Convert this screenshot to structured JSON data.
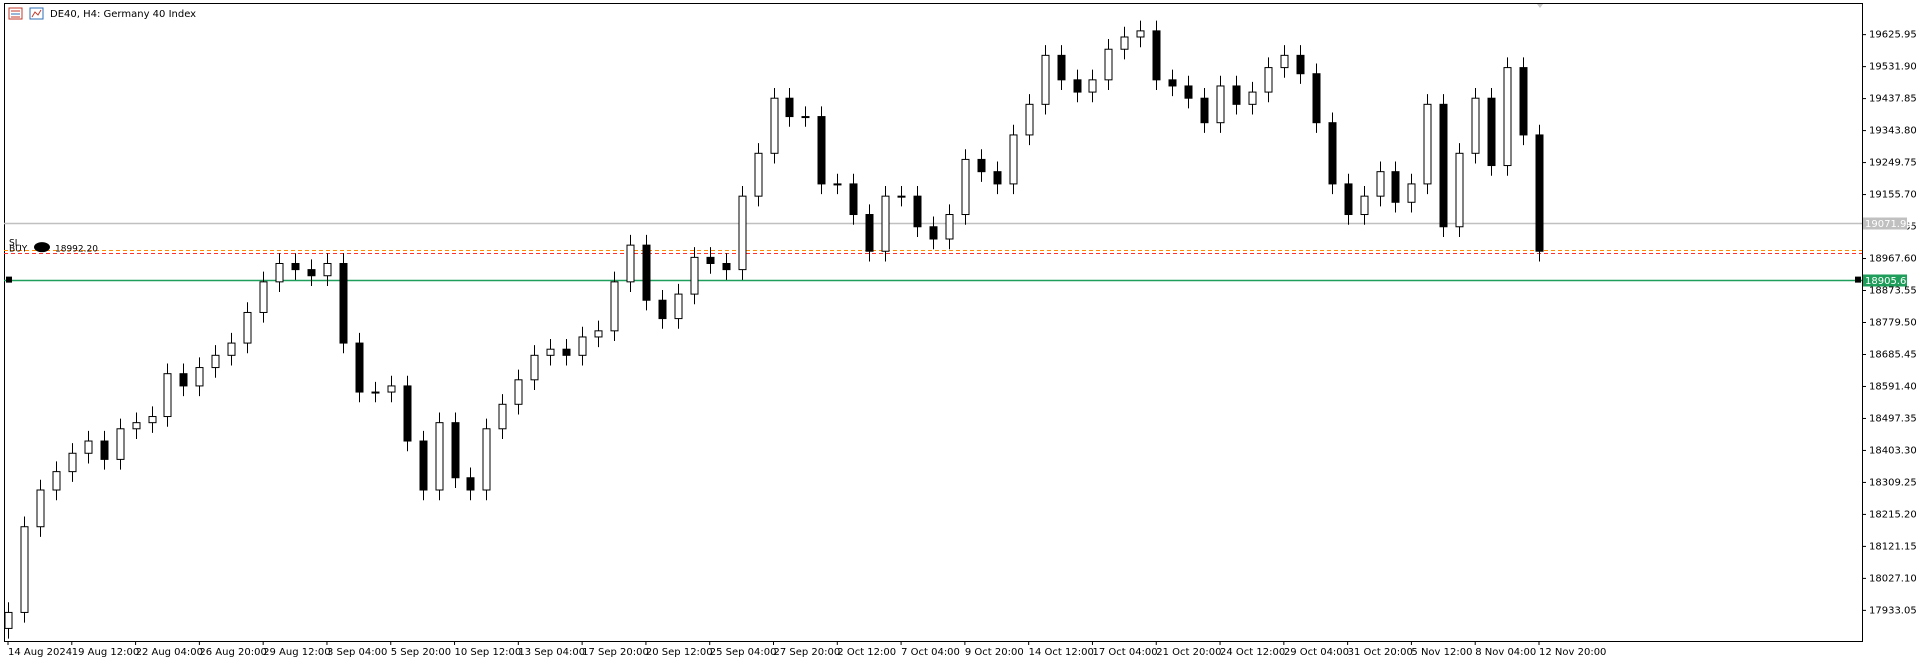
{
  "chart_data": {
    "type": "candlestick",
    "title": "DE40, H4:  Germany 40 Index",
    "categories": [
      "14 Aug 2024",
      null,
      null,
      null,
      "19 Aug 12:00",
      null,
      null,
      null,
      "22 Aug 04:00",
      null,
      null,
      null,
      "26 Aug 20:00",
      null,
      null,
      null,
      "29 Aug 12:00",
      null,
      null,
      null,
      "3 Sep 04:00",
      null,
      null,
      null,
      "5 Sep 20:00",
      null,
      null,
      null,
      "10 Sep 12:00",
      null,
      null,
      null,
      "13 Sep 04:00",
      null,
      null,
      null,
      "17 Sep 20:00",
      null,
      null,
      null,
      "20 Sep 12:00",
      null,
      null,
      null,
      "25 Sep 04:00",
      null,
      null,
      null,
      "27 Sep 20:00",
      null,
      null,
      null,
      "2 Oct 12:00",
      null,
      null,
      null,
      "7 Oct 04:00",
      null,
      null,
      null,
      "9 Oct 20:00",
      null,
      null,
      null,
      "14 Oct 12:00",
      null,
      null,
      null,
      "17 Oct 04:00",
      null,
      null,
      null,
      "21 Oct 20:00",
      null,
      null,
      null,
      "24 Oct 12:00",
      null,
      null,
      null,
      "29 Oct 04:00",
      null,
      null,
      null,
      "31 Oct 20:00",
      null,
      null,
      null,
      "5 Nov 12:00",
      null,
      null,
      null,
      "8 Nov 04:00",
      null,
      null,
      null,
      "12 Nov 20:00"
    ],
    "open": [
      17880,
      17927,
      18179,
      18287,
      18341,
      18395,
      18431,
      18377,
      18467,
      18485,
      18503,
      18629,
      18593,
      18647,
      18683,
      18719,
      18809,
      18899,
      18953,
      18935,
      18917,
      18953,
      18719,
      18575,
      18575,
      18593,
      18431,
      18287,
      18485,
      18323,
      18287,
      18467,
      18539,
      18611,
      18683,
      18701,
      18683,
      18737,
      18755,
      18899,
      19007,
      18845,
      18791,
      18863,
      18971,
      18953,
      18935,
      19151,
      19277,
      19439,
      19385,
      19385,
      19187,
      19187,
      19097,
      18989,
      19151,
      19151,
      19061,
      19025,
      19097,
      19259,
      19223,
      19187,
      19331,
      19421,
      19565,
      19493,
      19457,
      19493,
      19583,
      19619,
      19637,
      19493,
      19475,
      19439,
      19367,
      19475,
      19421,
      19457,
      19529,
      19565,
      19511,
      19367,
      19187,
      19097,
      19151,
      19223,
      19133,
      19187,
      19421,
      19061,
      19277,
      19439,
      19241,
      19529,
      19331
    ],
    "high": [
      17957,
      18209,
      18317,
      18371,
      18425,
      18461,
      18461,
      18497,
      18515,
      18533,
      18659,
      18659,
      18677,
      18713,
      18749,
      18839,
      18929,
      18983,
      18983,
      18965,
      18983,
      18983,
      18749,
      18605,
      18623,
      18623,
      18461,
      18515,
      18515,
      18353,
      18497,
      18569,
      18641,
      18713,
      18731,
      18731,
      18767,
      18785,
      18929,
      19037,
      19037,
      18875,
      18893,
      19001,
      19001,
      18983,
      19181,
      19307,
      19469,
      19469,
      19415,
      19415,
      19217,
      19217,
      19127,
      19181,
      19181,
      19181,
      19091,
      19127,
      19289,
      19289,
      19253,
      19361,
      19451,
      19595,
      19595,
      19523,
      19523,
      19613,
      19649,
      19667,
      19667,
      19523,
      19505,
      19469,
      19505,
      19505,
      19487,
      19559,
      19595,
      19595,
      19541,
      19397,
      19217,
      19181,
      19253,
      19253,
      19217,
      19451,
      19451,
      19307,
      19469,
      19469,
      19559,
      19559,
      19361
    ],
    "low": [
      17850,
      17897,
      18149,
      18257,
      18311,
      18365,
      18347,
      18347,
      18437,
      18455,
      18473,
      18563,
      18563,
      18617,
      18653,
      18689,
      18779,
      18869,
      18905,
      18887,
      18887,
      18689,
      18545,
      18545,
      18545,
      18401,
      18257,
      18257,
      18293,
      18257,
      18257,
      18437,
      18509,
      18581,
      18653,
      18653,
      18653,
      18707,
      18725,
      18869,
      18815,
      18761,
      18761,
      18833,
      18923,
      18905,
      18905,
      19121,
      19247,
      19355,
      19355,
      19157,
      19157,
      19067,
      18959,
      18959,
      19121,
      19031,
      18995,
      18995,
      19067,
      19193,
      19157,
      19157,
      19301,
      19391,
      19463,
      19427,
      19427,
      19463,
      19553,
      19589,
      19463,
      19445,
      19409,
      19337,
      19337,
      19391,
      19391,
      19427,
      19499,
      19481,
      19337,
      19157,
      19067,
      19067,
      19121,
      19103,
      19103,
      19157,
      19031,
      19031,
      19247,
      19211,
      19211,
      19301,
      18959
    ],
    "close": [
      17927,
      18179,
      18287,
      18341,
      18395,
      18431,
      18377,
      18467,
      18485,
      18503,
      18629,
      18593,
      18647,
      18683,
      18719,
      18809,
      18899,
      18953,
      18935,
      18917,
      18953,
      18719,
      18575,
      18575,
      18593,
      18431,
      18287,
      18485,
      18323,
      18287,
      18467,
      18539,
      18611,
      18683,
      18701,
      18683,
      18737,
      18755,
      18899,
      19007,
      18845,
      18791,
      18863,
      18971,
      18953,
      18935,
      19151,
      19277,
      19439,
      19385,
      19385,
      19187,
      19187,
      19097,
      18989,
      19151,
      19151,
      19061,
      19025,
      19097,
      19259,
      19223,
      19187,
      19331,
      19421,
      19565,
      19493,
      19457,
      19493,
      19583,
      19619,
      19637,
      19493,
      19475,
      19439,
      19367,
      19475,
      19421,
      19457,
      19529,
      19565,
      19511,
      19367,
      19187,
      19097,
      19151,
      19223,
      19133,
      19187,
      19421,
      19061,
      19277,
      19439,
      19241,
      19529,
      19331,
      18989
    ],
    "up_color": "#ffffff",
    "down_color": "#000000",
    "outline_color": "#000000",
    "ylim": [
      17843,
      19716
    ],
    "yticks": [
      19625.95,
      {
        "value": 19531.9,
        "label": "19531.90"
      },
      19437.85,
      {
        "value": 19343.8,
        "label": "19343.80"
      },
      19249.75,
      {
        "value": 19155.7,
        "label": "19155.70"
      },
      19061.65,
      {
        "value": 18967.6,
        "label": "18967.60"
      },
      18873.55,
      {
        "value": 18779.5,
        "label": "18779.50"
      },
      18685.45,
      {
        "value": 18591.4,
        "label": "18591.40"
      },
      18497.35,
      {
        "value": 18403.3,
        "label": "18403.30"
      },
      18309.25,
      {
        "value": 18215.2,
        "label": "18215.20"
      },
      18121.15,
      {
        "value": 18027.1,
        "label": "18027.10"
      },
      17933.05
    ],
    "levels": [
      {
        "value": 19071.9,
        "label": "19071.90",
        "color": "#c0c0c0",
        "dashed": false
      },
      {
        "value": 18992.2,
        "color": "#ff8c00",
        "dashed": true
      },
      {
        "value": 18984,
        "color": "#ff3030",
        "dashed": true
      },
      {
        "value": 18905.6,
        "label": "18905.60",
        "color": "#1e9e5a",
        "dashed": false
      }
    ],
    "trade": {
      "sl": "SL",
      "side": "BUY",
      "price": {
        "value": 18992.2,
        "label": "18992.20"
      }
    }
  }
}
